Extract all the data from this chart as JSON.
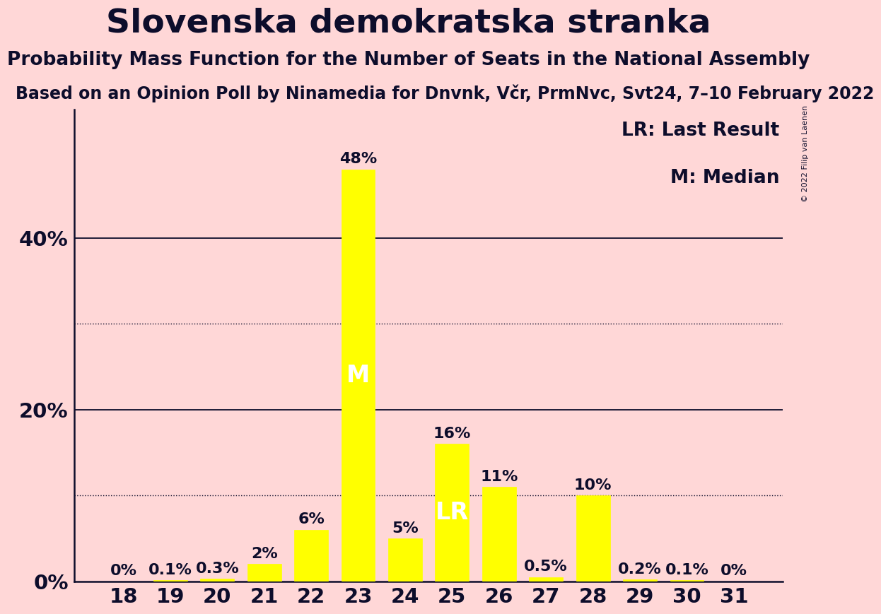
{
  "title": "Slovenska demokratska stranka",
  "subtitle": "Probability Mass Function for the Number of Seats in the National Assembly",
  "source_line": "Based on an Opinion Poll by Ninamedia for Dnvnk, Včr, PrmNvc, Svt24, 7–10 February 2022",
  "copyright": "© 2022 Filip van Laenen",
  "categories": [
    18,
    19,
    20,
    21,
    22,
    23,
    24,
    25,
    26,
    27,
    28,
    29,
    30,
    31
  ],
  "values": [
    0.0,
    0.1,
    0.3,
    2.0,
    6.0,
    48.0,
    5.0,
    16.0,
    11.0,
    0.5,
    10.0,
    0.2,
    0.1,
    0.0
  ],
  "labels": [
    "0%",
    "0.1%",
    "0.3%",
    "2%",
    "6%",
    "48%",
    "5%",
    "16%",
    "11%",
    "0.5%",
    "10%",
    "0.2%",
    "0.1%",
    "0%"
  ],
  "bar_color": "#ffff00",
  "background_color": "#ffd7d7",
  "text_color": "#0d0d2b",
  "median_seat": 23,
  "last_result_seat": 25,
  "legend_lr": "LR: Last Result",
  "legend_m": "M: Median",
  "yticks": [
    0,
    20,
    40
  ],
  "ytick_labels": [
    "0%",
    "20%",
    "40%"
  ],
  "dotted_lines": [
    10,
    30
  ],
  "solid_lines": [
    20,
    40
  ],
  "ylim": [
    0,
    55
  ],
  "title_fontsize": 34,
  "subtitle_fontsize": 19,
  "source_fontsize": 17,
  "bar_label_fontsize": 16,
  "axis_tick_fontsize": 21,
  "legend_fontsize": 19,
  "inner_label_fontsize": 24,
  "copyright_fontsize": 8
}
